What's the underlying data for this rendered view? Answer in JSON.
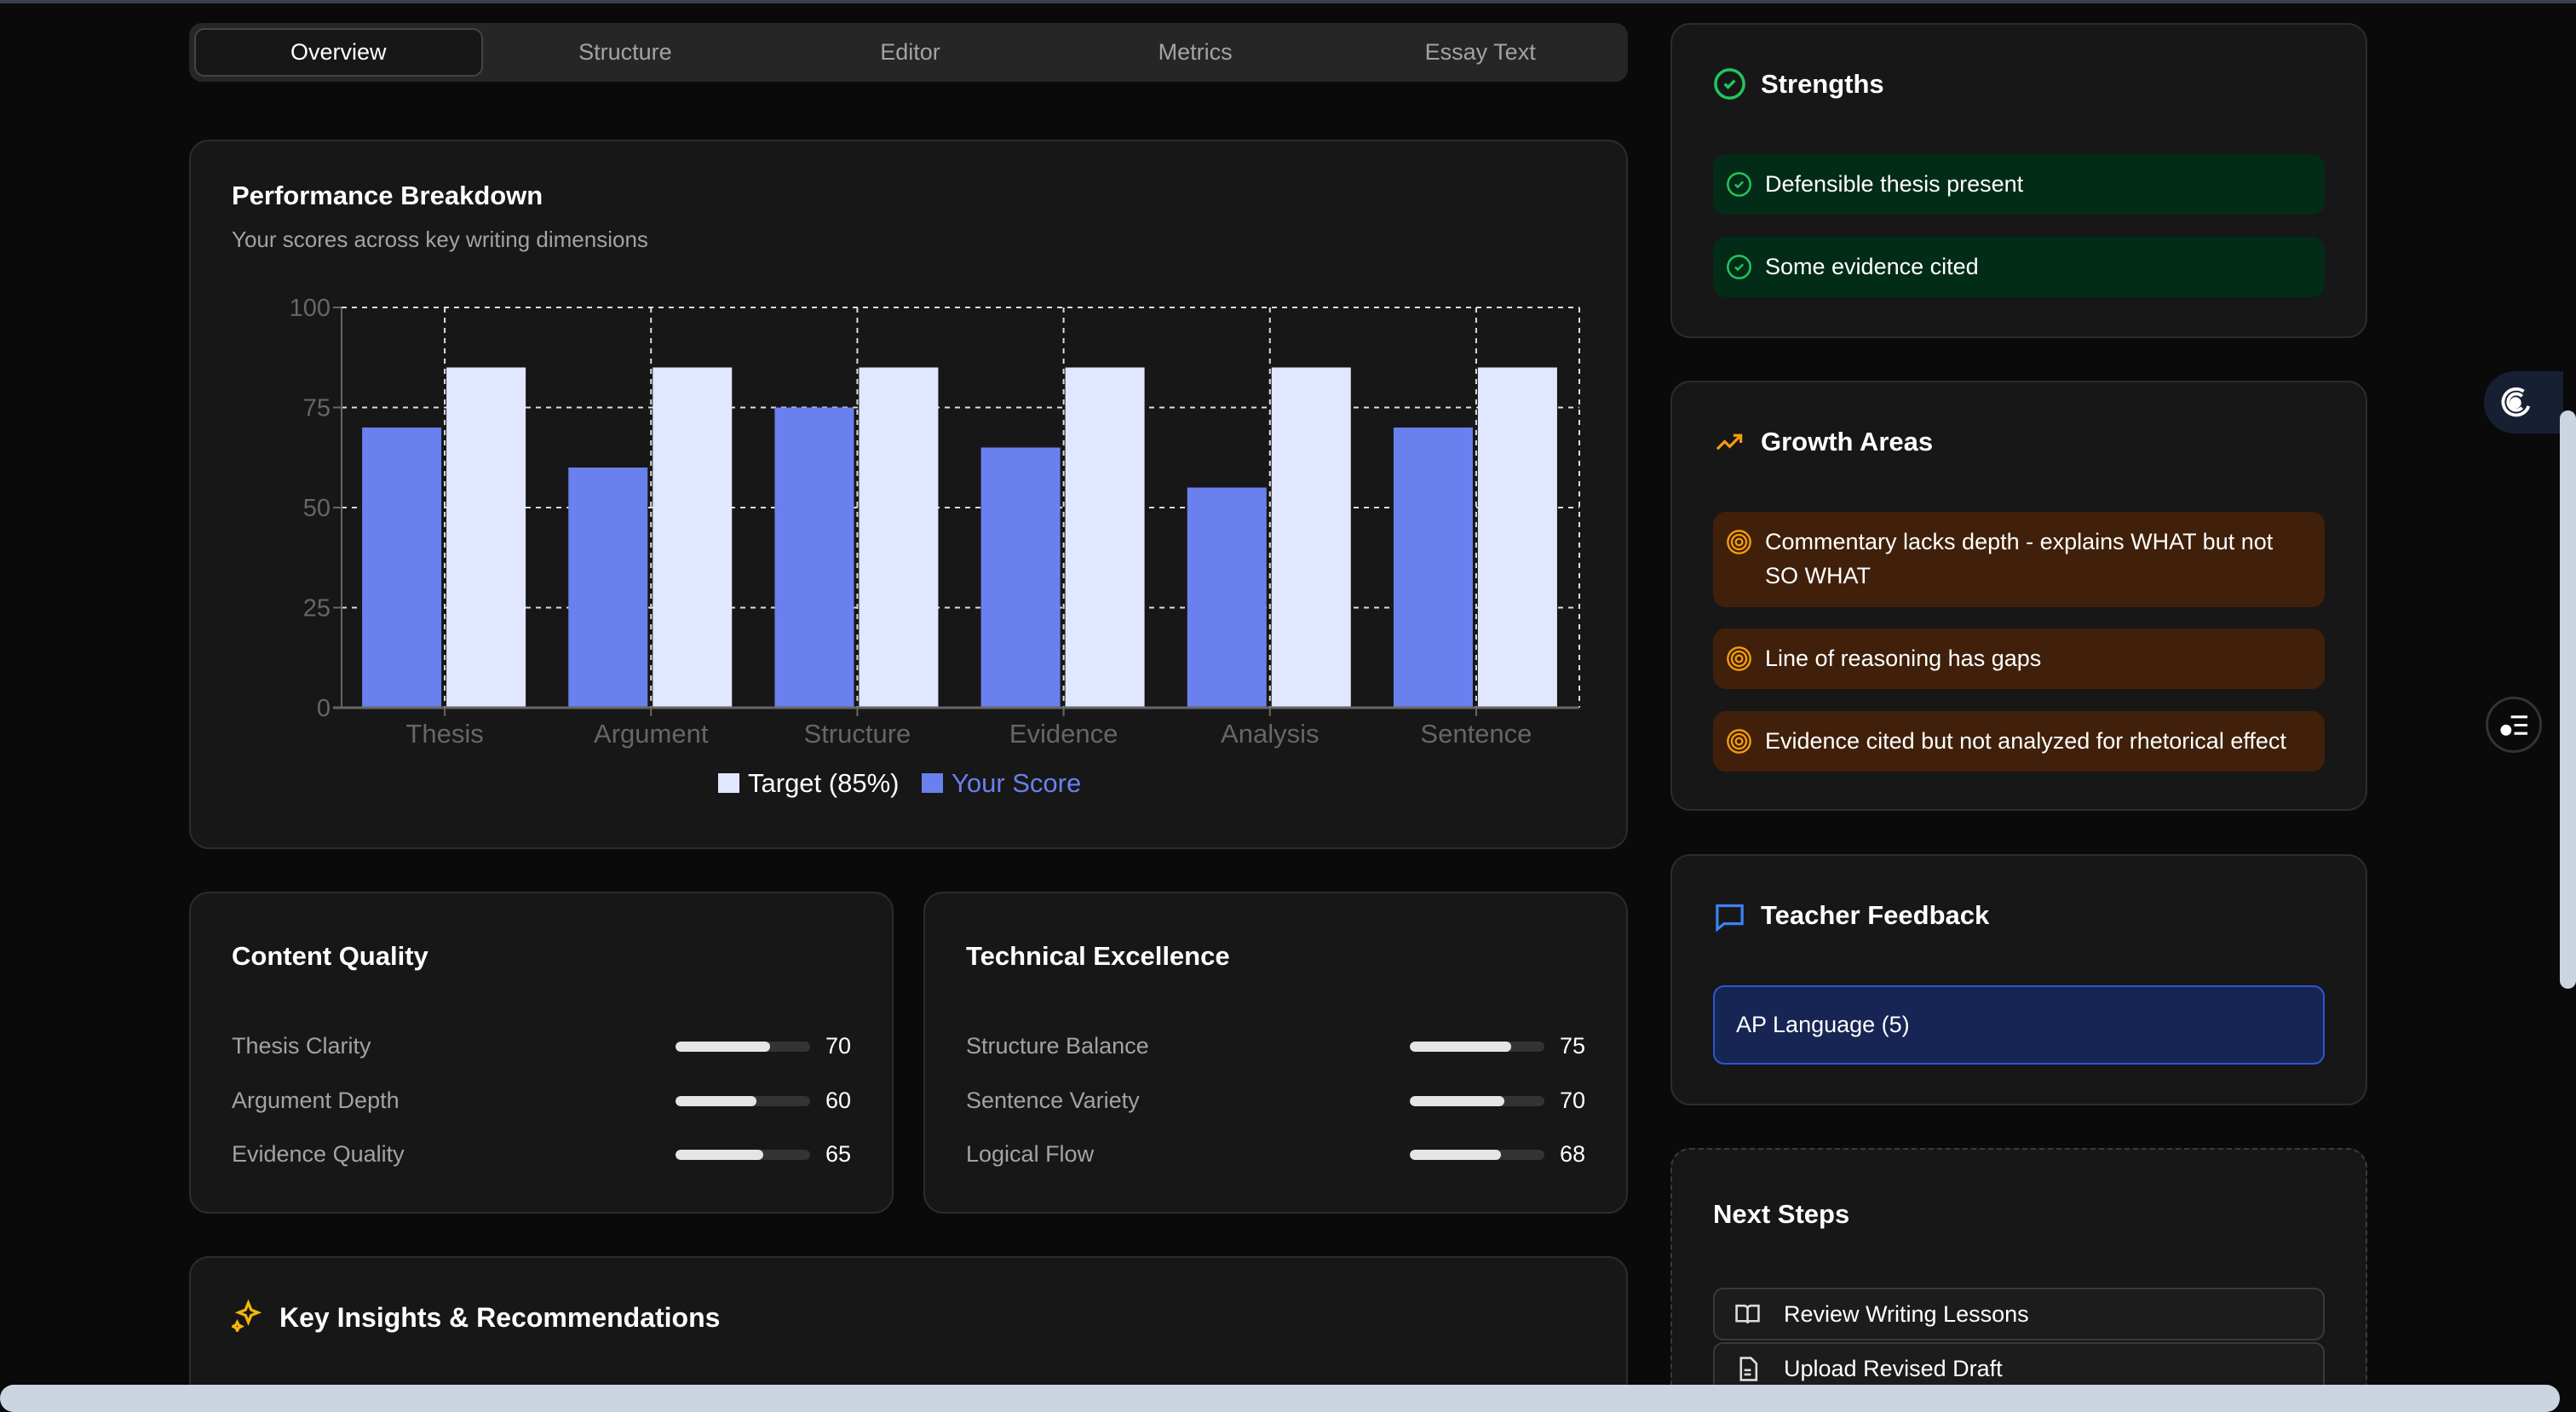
{
  "tabs": [
    {
      "label": "Overview",
      "active": true
    },
    {
      "label": "Structure"
    },
    {
      "label": "Editor"
    },
    {
      "label": "Metrics"
    },
    {
      "label": "Essay Text"
    }
  ],
  "performance": {
    "title": "Performance Breakdown",
    "subtitle": "Your scores across key writing dimensions"
  },
  "chart_data": {
    "type": "bar",
    "categories": [
      "Thesis",
      "Argument",
      "Structure",
      "Evidence",
      "Analysis",
      "Sentence"
    ],
    "series": [
      {
        "name": "Your Score",
        "color": "#6a80ee",
        "values": [
          70,
          60,
          75,
          65,
          55,
          70
        ]
      },
      {
        "name": "Target (85%)",
        "color": "#e0e7ff",
        "values": [
          85,
          85,
          85,
          85,
          85,
          85
        ]
      }
    ],
    "legend": [
      {
        "label": "Target (85%)",
        "color": "#e0e7ff"
      },
      {
        "label": "Your Score",
        "color": "#6a80ee"
      }
    ],
    "yticks": [
      "0",
      "25",
      "50",
      "75",
      "100"
    ],
    "ylim": [
      0,
      100
    ],
    "grid": true,
    "legend_position": "bottom"
  },
  "content_quality": {
    "title": "Content Quality",
    "items": [
      {
        "label": "Thesis Clarity",
        "value": 70
      },
      {
        "label": "Argument Depth",
        "value": 60
      },
      {
        "label": "Evidence Quality",
        "value": 65
      }
    ]
  },
  "technical": {
    "title": "Technical Excellence",
    "items": [
      {
        "label": "Structure Balance",
        "value": 75
      },
      {
        "label": "Sentence Variety",
        "value": 70
      },
      {
        "label": "Logical Flow",
        "value": 68
      }
    ]
  },
  "insights": {
    "title": "Key Insights & Recommendations"
  },
  "strengths": {
    "title": "Strengths",
    "items": [
      "Defensible thesis present",
      "Some evidence cited"
    ],
    "color": "#22c55e"
  },
  "growth": {
    "title": "Growth Areas",
    "items": [
      "Commentary lacks depth - explains WHAT but not SO WHAT",
      "Line of reasoning has gaps",
      "Evidence cited but not analyzed for rhetorical effect"
    ],
    "color": "#f59e0b"
  },
  "teacher": {
    "title": "Teacher Feedback",
    "course": "AP Language (5)",
    "color": "#3b82f6"
  },
  "next_steps": {
    "title": "Next Steps",
    "items": [
      "Review Writing Lessons",
      "Upload Revised Draft"
    ]
  }
}
